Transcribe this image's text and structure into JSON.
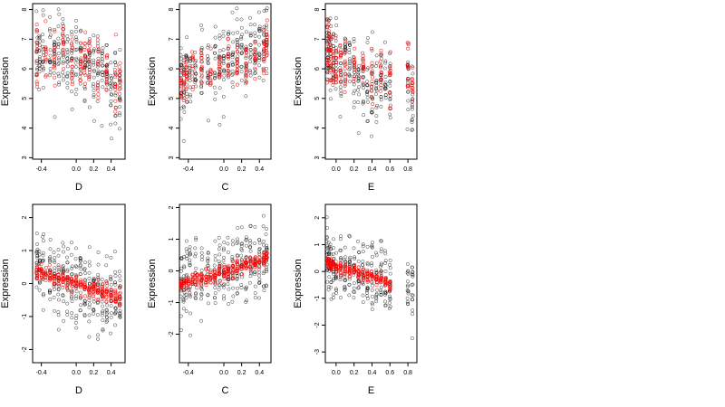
{
  "colors": {
    "black": "#000000",
    "red": "#ff0000"
  },
  "chart_data": [
    {
      "type": "scatter",
      "xlabel": "D",
      "ylabel": "Expression",
      "xlim": [
        -0.5,
        0.56
      ],
      "ylim": [
        2.95,
        8.2
      ],
      "xticks": [
        {
          "v": -0.4,
          "label": "-0.4"
        },
        {
          "v": 0.0,
          "label": "0.0"
        },
        {
          "v": 0.2,
          "label": "0.2"
        },
        {
          "v": 0.4,
          "label": "0.4"
        }
      ],
      "yticks": [
        {
          "v": 3,
          "label": "3"
        },
        {
          "v": 4,
          "label": "4"
        },
        {
          "v": 5,
          "label": "5"
        },
        {
          "v": 6,
          "label": "6"
        },
        {
          "v": 7,
          "label": "7"
        },
        {
          "v": 8,
          "label": "8"
        }
      ],
      "observed": {
        "xcols": [
          -0.45,
          -0.42,
          -0.38,
          -0.3,
          -0.25,
          -0.2,
          -0.15,
          -0.1,
          -0.05,
          0.0,
          0.05,
          0.1,
          0.15,
          0.2,
          0.25,
          0.3,
          0.35,
          0.4,
          0.45,
          0.5
        ],
        "center": [
          6.4,
          6.5,
          6.5,
          6.4,
          6.4,
          6.5,
          6.5,
          6.4,
          6.3,
          6.3,
          6.4,
          6.2,
          6.3,
          6.1,
          6.0,
          5.9,
          6.0,
          5.5,
          5.4,
          5.4
        ],
        "spread": 0.6
      },
      "predicted": {
        "x": [
          -0.45,
          -0.35,
          -0.25,
          -0.15,
          -0.05,
          0.05,
          0.1,
          0.15,
          0.25,
          0.35,
          0.45,
          0.5
        ],
        "y": [
          6.3,
          6.3,
          6.5,
          6.6,
          6.4,
          6.2,
          6.1,
          6.1,
          5.9,
          5.9,
          5.6,
          5.6
        ],
        "spread": 0.5
      }
    },
    {
      "type": "scatter",
      "xlabel": "C",
      "ylabel": "Expression",
      "xlim": [
        -0.5,
        0.53
      ],
      "ylim": [
        2.95,
        8.2
      ],
      "xticks": [
        {
          "v": -0.4,
          "label": "-0.4"
        },
        {
          "v": 0.0,
          "label": "0.0"
        },
        {
          "v": 0.2,
          "label": "0.2"
        },
        {
          "v": 0.4,
          "label": "0.4"
        }
      ],
      "yticks": [
        {
          "v": 3,
          "label": "3"
        },
        {
          "v": 4,
          "label": "4"
        },
        {
          "v": 5,
          "label": "5"
        },
        {
          "v": 6,
          "label": "6"
        },
        {
          "v": 7,
          "label": "7"
        },
        {
          "v": 8,
          "label": "8"
        }
      ],
      "observed": {
        "xcols": [
          -0.48,
          -0.45,
          -0.42,
          -0.38,
          -0.32,
          -0.25,
          -0.18,
          -0.1,
          -0.05,
          0.0,
          0.05,
          0.1,
          0.15,
          0.2,
          0.25,
          0.3,
          0.35,
          0.4,
          0.45,
          0.48
        ],
        "center": [
          5.5,
          5.6,
          5.8,
          5.8,
          6.0,
          6.0,
          6.1,
          6.1,
          6.2,
          6.3,
          6.3,
          6.4,
          6.4,
          6.5,
          6.4,
          6.6,
          6.6,
          6.7,
          6.7,
          6.8
        ],
        "spread": 0.6
      },
      "predicted": {
        "x": [
          -0.48,
          -0.45,
          -0.42,
          -0.35,
          -0.25,
          -0.15,
          -0.05,
          0.05,
          0.15,
          0.25,
          0.35,
          0.45,
          0.48
        ],
        "y": [
          5.7,
          5.8,
          5.9,
          6.0,
          6.0,
          6.1,
          6.2,
          6.3,
          6.3,
          6.4,
          6.5,
          6.6,
          6.7
        ],
        "spread": 0.4
      }
    },
    {
      "type": "scatter",
      "xlabel": "E",
      "ylabel": "Expression",
      "xlim": [
        -0.12,
        0.9
      ],
      "ylim": [
        2.95,
        8.2
      ],
      "xticks": [
        {
          "v": 0.0,
          "label": "0.0"
        },
        {
          "v": 0.2,
          "label": "0.2"
        },
        {
          "v": 0.4,
          "label": "0.4"
        },
        {
          "v": 0.6,
          "label": "0.6"
        },
        {
          "v": 0.8,
          "label": "0.8"
        }
      ],
      "yticks": [
        {
          "v": 3,
          "label": "3"
        },
        {
          "v": 4,
          "label": "4"
        },
        {
          "v": 5,
          "label": "5"
        },
        {
          "v": 6,
          "label": "6"
        },
        {
          "v": 7,
          "label": "7"
        },
        {
          "v": 8,
          "label": "8"
        }
      ],
      "observed": {
        "xcols": [
          -0.1,
          -0.08,
          -0.06,
          -0.03,
          0.0,
          0.05,
          0.1,
          0.15,
          0.2,
          0.25,
          0.3,
          0.35,
          0.4,
          0.45,
          0.5,
          0.55,
          0.6,
          0.8,
          0.85
        ],
        "center": [
          6.5,
          6.6,
          6.4,
          6.3,
          6.1,
          6.0,
          6.2,
          6.0,
          5.9,
          5.7,
          5.6,
          5.5,
          5.4,
          5.4,
          5.5,
          5.6,
          5.5,
          5.8,
          5.0
        ],
        "spread": 0.7
      },
      "predicted": {
        "x": [
          -0.1,
          -0.08,
          -0.06,
          -0.03,
          0.0,
          0.05,
          0.1,
          0.2,
          0.3,
          0.4,
          0.5,
          0.6,
          0.8,
          0.85
        ],
        "y": [
          6.6,
          6.5,
          6.4,
          6.3,
          6.2,
          6.2,
          6.1,
          6.0,
          5.8,
          5.7,
          5.6,
          5.5,
          6.0,
          5.4
        ],
        "spread": 0.5
      }
    },
    {
      "type": "scatter",
      "xlabel": "D",
      "ylabel": "Expression",
      "xlim": [
        -0.5,
        0.56
      ],
      "ylim": [
        -2.4,
        2.4
      ],
      "xticks": [
        {
          "v": -0.4,
          "label": "-0.4"
        },
        {
          "v": 0.0,
          "label": "0.0"
        },
        {
          "v": 0.2,
          "label": "0.2"
        },
        {
          "v": 0.4,
          "label": "0.4"
        }
      ],
      "yticks": [
        {
          "v": -2,
          "label": "-2"
        },
        {
          "v": -1,
          "label": "-1"
        },
        {
          "v": 0,
          "label": "0"
        },
        {
          "v": 1,
          "label": "1"
        },
        {
          "v": 2,
          "label": "2"
        }
      ],
      "observed": {
        "xcols": [
          -0.45,
          -0.42,
          -0.38,
          -0.3,
          -0.25,
          -0.2,
          -0.15,
          -0.1,
          -0.05,
          0.0,
          0.05,
          0.1,
          0.15,
          0.2,
          0.25,
          0.3,
          0.35,
          0.4,
          0.45,
          0.5
        ],
        "center": [
          0.5,
          0.4,
          0.4,
          0.3,
          0.2,
          0.2,
          0.1,
          0.1,
          0.0,
          0.0,
          0.0,
          -0.1,
          -0.2,
          -0.2,
          -0.2,
          -0.3,
          -0.3,
          -0.4,
          -0.5,
          -0.5
        ],
        "spread": 0.55
      },
      "predicted": {
        "x": [
          -0.45,
          -0.4,
          -0.35,
          -0.3,
          -0.25,
          -0.2,
          -0.15,
          -0.1,
          -0.05,
          0.0,
          0.05,
          0.1,
          0.15,
          0.2,
          0.25,
          0.3,
          0.35,
          0.4,
          0.45,
          0.5
        ],
        "y": [
          0.4,
          0.35,
          0.3,
          0.25,
          0.2,
          0.15,
          0.1,
          0.05,
          0.05,
          0.0,
          -0.05,
          -0.1,
          -0.15,
          -0.2,
          -0.2,
          -0.25,
          -0.3,
          -0.35,
          -0.4,
          -0.45
        ],
        "spread": 0.12
      }
    },
    {
      "type": "scatter",
      "xlabel": "C",
      "ylabel": "Expression",
      "xlim": [
        -0.5,
        0.53
      ],
      "ylim": [
        -2.9,
        2.1
      ],
      "xticks": [
        {
          "v": -0.4,
          "label": "-0.4"
        },
        {
          "v": 0.0,
          "label": "0.0"
        },
        {
          "v": 0.2,
          "label": "0.2"
        },
        {
          "v": 0.4,
          "label": "0.4"
        }
      ],
      "yticks": [
        {
          "v": -2,
          "label": "-2"
        },
        {
          "v": -1,
          "label": "-1"
        },
        {
          "v": 0,
          "label": "0"
        },
        {
          "v": 1,
          "label": "1"
        },
        {
          "v": 2,
          "label": "2"
        }
      ],
      "observed": {
        "xcols": [
          -0.48,
          -0.45,
          -0.42,
          -0.38,
          -0.32,
          -0.25,
          -0.18,
          -0.1,
          -0.05,
          0.0,
          0.05,
          0.1,
          0.15,
          0.2,
          0.25,
          0.3,
          0.35,
          0.4,
          0.45,
          0.48
        ],
        "center": [
          -0.4,
          -0.4,
          -0.3,
          -0.3,
          -0.2,
          -0.2,
          -0.1,
          -0.1,
          0.0,
          0.0,
          0.1,
          0.1,
          0.1,
          0.2,
          0.2,
          0.3,
          0.3,
          0.4,
          0.4,
          0.5
        ],
        "spread": 0.55
      },
      "predicted": {
        "x": [
          -0.48,
          -0.45,
          -0.4,
          -0.35,
          -0.3,
          -0.25,
          -0.2,
          -0.15,
          -0.1,
          -0.05,
          0.0,
          0.05,
          0.1,
          0.15,
          0.2,
          0.25,
          0.3,
          0.35,
          0.4,
          0.45,
          0.48
        ],
        "y": [
          -0.45,
          -0.42,
          -0.38,
          -0.34,
          -0.3,
          -0.25,
          -0.21,
          -0.17,
          -0.12,
          -0.08,
          -0.04,
          0.0,
          0.05,
          0.09,
          0.13,
          0.17,
          0.22,
          0.26,
          0.3,
          0.34,
          0.37
        ],
        "spread": 0.12
      }
    },
    {
      "type": "scatter",
      "xlabel": "E",
      "ylabel": "Expression",
      "xlim": [
        -0.12,
        0.9
      ],
      "ylim": [
        -3.4,
        2.5
      ],
      "xticks": [
        {
          "v": 0.0,
          "label": "0.0"
        },
        {
          "v": 0.2,
          "label": "0.2"
        },
        {
          "v": 0.4,
          "label": "0.4"
        },
        {
          "v": 0.6,
          "label": "0.6"
        },
        {
          "v": 0.8,
          "label": "0.8"
        }
      ],
      "yticks": [
        {
          "v": -3,
          "label": "-3"
        },
        {
          "v": -2,
          "label": "-2"
        },
        {
          "v": -1,
          "label": "-1"
        },
        {
          "v": 0,
          "label": "0"
        },
        {
          "v": 1,
          "label": "1"
        },
        {
          "v": 2,
          "label": "2"
        }
      ],
      "observed": {
        "xcols": [
          -0.1,
          -0.08,
          -0.06,
          -0.03,
          0.0,
          0.05,
          0.1,
          0.15,
          0.2,
          0.25,
          0.3,
          0.35,
          0.4,
          0.45,
          0.5,
          0.55,
          0.6,
          0.8,
          0.85
        ],
        "center": [
          0.3,
          0.3,
          0.2,
          0.2,
          0.1,
          0.1,
          0.0,
          0.0,
          -0.1,
          -0.1,
          -0.2,
          -0.3,
          -0.3,
          -0.4,
          -0.4,
          -0.5,
          -0.6,
          -0.8,
          -0.9
        ],
        "spread": 0.6
      },
      "predicted": {
        "x": [
          -0.1,
          -0.08,
          -0.06,
          -0.03,
          0.0,
          0.05,
          0.1,
          0.15,
          0.2,
          0.25,
          0.3,
          0.35,
          0.4,
          0.45,
          0.5,
          0.55,
          0.6
        ],
        "y": [
          0.35,
          0.3,
          0.27,
          0.23,
          0.2,
          0.15,
          0.1,
          0.05,
          0.0,
          -0.05,
          -0.1,
          -0.15,
          -0.2,
          -0.28,
          -0.35,
          -0.42,
          -0.5
        ],
        "spread": 0.12
      }
    }
  ]
}
